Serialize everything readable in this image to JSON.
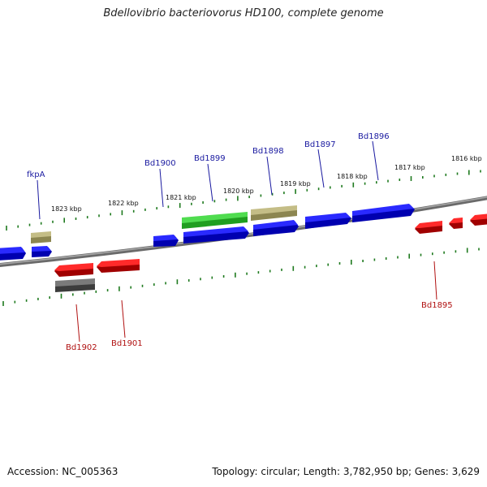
{
  "title": "Bdellovibrio bacteriovorus HD100, complete genome",
  "accession": "Accession: NC_005363",
  "summary": "Topology: circular; Length: 3,782,950 bp; Genes: 3,629",
  "colors": {
    "forward_gene": "#1414e0",
    "reverse_gene": "#e01414",
    "green_feature": "#3ecb3e",
    "tan_feature": "#b9b27a",
    "gray_feature": "#666666",
    "backbone": "#8a8a8a",
    "tick": "#1f7a1f",
    "forward_label": "#1a1aa0",
    "reverse_label": "#b01010",
    "green_label": "#147014"
  },
  "scale_ticks": [
    "1823 kbp",
    "1822 kbp",
    "1821 kbp",
    "1820 kbp",
    "1819 kbp",
    "1818 kbp",
    "1817 kbp",
    "1816 kbp"
  ],
  "gene_labels": {
    "fkpA": "fkpA",
    "bd1900": "Bd1900",
    "bd1899": "Bd1899",
    "bd1898": "Bd1898",
    "bd1897": "Bd1897",
    "bd1896": "Bd1896",
    "bd1895": "Bd1895",
    "bd1902": "Bd1902",
    "bd1901": "Bd1901"
  }
}
